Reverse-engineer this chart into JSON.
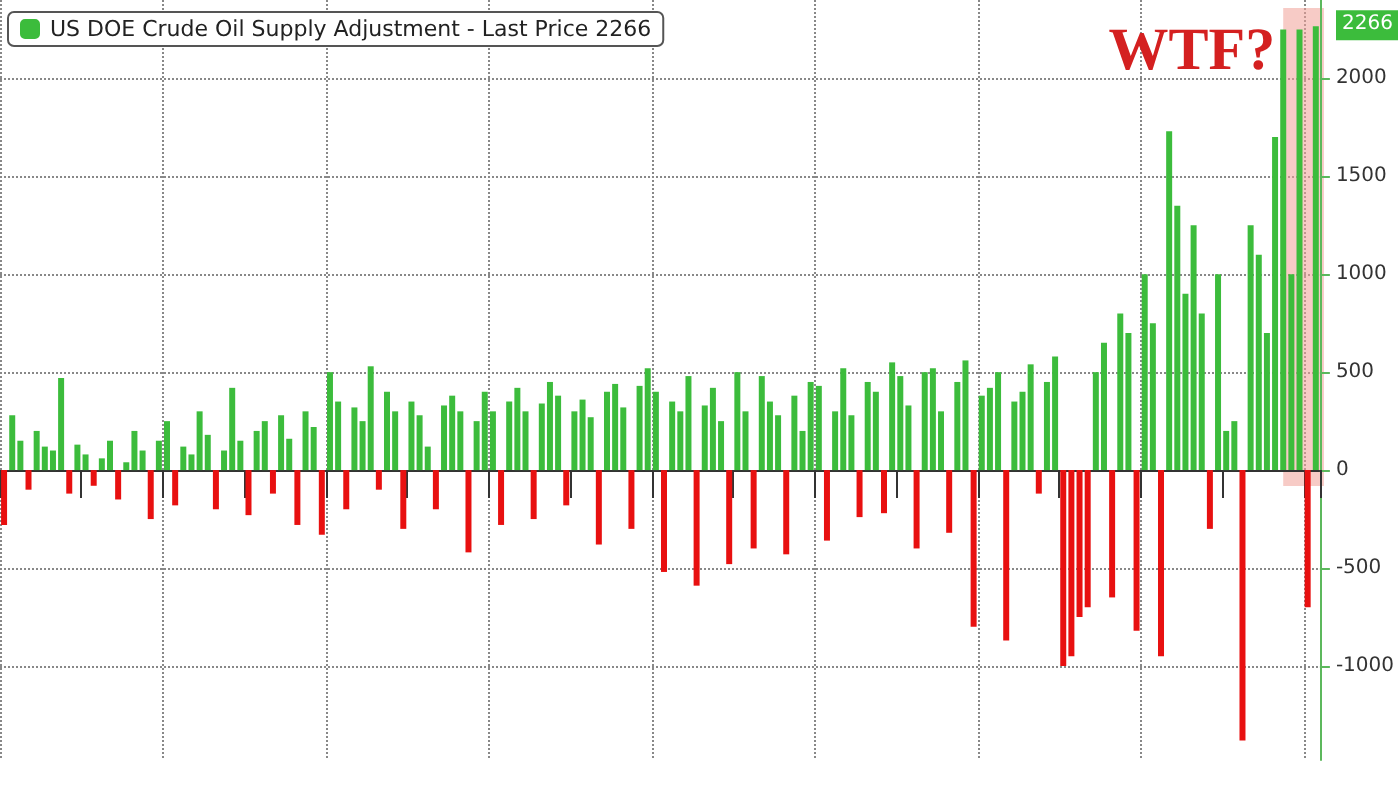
{
  "chart_data": {
    "type": "bar",
    "legend": "top left",
    "grid": true,
    "tick_labels": "y",
    "ylim": [
      -1480,
      2400
    ],
    "yticks": [
      -1000,
      -500,
      0,
      500,
      1000,
      1500,
      2000
    ],
    "categories": [
      null,
      null,
      null,
      null,
      null,
      null,
      null,
      null,
      null,
      null,
      null,
      null,
      null,
      null,
      null,
      null,
      null,
      null,
      null,
      null,
      null,
      null,
      null,
      null,
      null,
      null,
      null,
      null,
      null,
      null,
      null,
      null,
      null,
      null,
      null,
      null,
      null,
      null,
      null,
      null,
      null,
      null,
      null,
      null,
      null,
      null,
      null,
      null,
      null,
      null,
      null,
      null,
      null,
      null,
      null,
      null,
      null,
      null,
      null,
      null,
      null,
      null,
      null,
      null,
      null,
      null,
      null,
      null,
      null,
      null,
      null,
      null,
      null,
      null,
      null,
      null,
      null,
      null,
      null,
      null,
      null,
      null,
      null,
      null,
      null,
      null,
      null,
      null,
      null,
      null,
      null,
      null,
      null,
      null,
      null,
      null,
      null,
      null,
      null,
      null,
      null,
      null,
      null,
      null,
      null,
      null,
      null,
      null,
      null,
      null,
      null,
      null,
      null,
      null,
      null,
      null,
      null,
      null,
      null,
      null,
      null,
      null,
      null,
      null,
      null,
      null,
      null,
      null,
      null,
      null,
      null,
      null,
      null,
      null,
      null,
      null,
      null,
      null,
      null,
      null,
      null,
      null,
      null,
      null,
      null,
      null,
      null,
      null,
      null,
      null,
      null,
      null,
      null,
      null,
      null,
      null,
      null,
      null,
      null,
      null,
      null,
      null
    ],
    "series": [
      {
        "name": "US DOE Crude Oil Supply Adjustment - Last Price 2266",
        "color": "#3cbc3c",
        "values": [
          -280,
          280,
          150,
          -100,
          200,
          120,
          100,
          470,
          -120,
          130,
          80,
          -80,
          60,
          150,
          -150,
          40,
          200,
          100,
          -250,
          150,
          250,
          -180,
          120,
          80,
          300,
          180,
          -200,
          100,
          420,
          150,
          -230,
          200,
          250,
          -120,
          280,
          160,
          -280,
          300,
          220,
          -330,
          500,
          350,
          -200,
          320,
          250,
          530,
          -100,
          400,
          300,
          -300,
          350,
          280,
          120,
          -200,
          330,
          380,
          300,
          -420,
          250,
          400,
          300,
          -280,
          350,
          420,
          300,
          -250,
          340,
          450,
          380,
          -180,
          300,
          360,
          270,
          -380,
          400,
          440,
          320,
          -300,
          430,
          520,
          400,
          -520,
          350,
          300,
          480,
          -590,
          330,
          420,
          250,
          -480,
          500,
          300,
          -400,
          480,
          350,
          280,
          -430,
          380,
          200,
          450,
          430,
          -360,
          300,
          520,
          280,
          -240,
          450,
          400,
          -220,
          550,
          480,
          330,
          -400,
          500,
          520,
          300,
          -320,
          450,
          560,
          -800,
          380,
          420,
          500,
          -870,
          350,
          400,
          540,
          -120,
          450,
          580,
          -1000,
          -950,
          -750,
          -700,
          500,
          650,
          -650,
          800,
          700,
          -820,
          1000,
          750,
          -950,
          1730,
          1350,
          900,
          1250,
          800,
          -300,
          1000,
          200,
          250,
          -1380,
          1250,
          1100,
          700,
          1700,
          2250,
          1000,
          2250,
          -700,
          2266
        ],
        "colors": [
          "#e81010",
          "#3cbc3c",
          "#3cbc3c",
          "#e81010",
          "#3cbc3c",
          "#3cbc3c",
          "#3cbc3c",
          "#3cbc3c",
          "#e81010",
          "#3cbc3c",
          "#3cbc3c",
          "#e81010",
          "#3cbc3c",
          "#3cbc3c",
          "#e81010",
          "#3cbc3c",
          "#3cbc3c",
          "#3cbc3c",
          "#e81010",
          "#3cbc3c",
          "#3cbc3c",
          "#e81010",
          "#3cbc3c",
          "#3cbc3c",
          "#3cbc3c",
          "#3cbc3c",
          "#e81010",
          "#3cbc3c",
          "#3cbc3c",
          "#3cbc3c",
          "#e81010",
          "#3cbc3c",
          "#3cbc3c",
          "#e81010",
          "#3cbc3c",
          "#3cbc3c",
          "#e81010",
          "#3cbc3c",
          "#3cbc3c",
          "#e81010",
          "#3cbc3c",
          "#3cbc3c",
          "#e81010",
          "#3cbc3c",
          "#3cbc3c",
          "#3cbc3c",
          "#e81010",
          "#3cbc3c",
          "#3cbc3c",
          "#e81010",
          "#3cbc3c",
          "#3cbc3c",
          "#3cbc3c",
          "#e81010",
          "#3cbc3c",
          "#3cbc3c",
          "#3cbc3c",
          "#e81010",
          "#3cbc3c",
          "#3cbc3c",
          "#3cbc3c",
          "#e81010",
          "#3cbc3c",
          "#3cbc3c",
          "#3cbc3c",
          "#e81010",
          "#3cbc3c",
          "#3cbc3c",
          "#3cbc3c",
          "#e81010",
          "#3cbc3c",
          "#3cbc3c",
          "#3cbc3c",
          "#e81010",
          "#3cbc3c",
          "#3cbc3c",
          "#3cbc3c",
          "#e81010",
          "#3cbc3c",
          "#3cbc3c",
          "#3cbc3c",
          "#e81010",
          "#3cbc3c",
          "#3cbc3c",
          "#3cbc3c",
          "#e81010",
          "#3cbc3c",
          "#3cbc3c",
          "#3cbc3c",
          "#e81010",
          "#3cbc3c",
          "#3cbc3c",
          "#e81010",
          "#3cbc3c",
          "#3cbc3c",
          "#3cbc3c",
          "#e81010",
          "#3cbc3c",
          "#3cbc3c",
          "#3cbc3c",
          "#3cbc3c",
          "#e81010",
          "#3cbc3c",
          "#3cbc3c",
          "#3cbc3c",
          "#e81010",
          "#3cbc3c",
          "#3cbc3c",
          "#e81010",
          "#3cbc3c",
          "#3cbc3c",
          "#3cbc3c",
          "#e81010",
          "#3cbc3c",
          "#3cbc3c",
          "#3cbc3c",
          "#e81010",
          "#3cbc3c",
          "#3cbc3c",
          "#e81010",
          "#3cbc3c",
          "#3cbc3c",
          "#3cbc3c",
          "#e81010",
          "#3cbc3c",
          "#3cbc3c",
          "#3cbc3c",
          "#e81010",
          "#3cbc3c",
          "#3cbc3c",
          "#e81010",
          "#e81010",
          "#e81010",
          "#e81010",
          "#3cbc3c",
          "#3cbc3c",
          "#e81010",
          "#3cbc3c",
          "#3cbc3c",
          "#e81010",
          "#3cbc3c",
          "#3cbc3c",
          "#e81010",
          "#3cbc3c",
          "#3cbc3c",
          "#3cbc3c",
          "#3cbc3c",
          "#3cbc3c",
          "#e81010",
          "#3cbc3c",
          "#3cbc3c",
          "#3cbc3c",
          "#e81010",
          "#3cbc3c",
          "#3cbc3c",
          "#3cbc3c",
          "#3cbc3c",
          "#3cbc3c",
          "#3cbc3c",
          "#3cbc3c",
          "#e81010",
          "#3cbc3c"
        ]
      }
    ],
    "annotations": [
      "WTF?",
      "2266"
    ]
  }
}
